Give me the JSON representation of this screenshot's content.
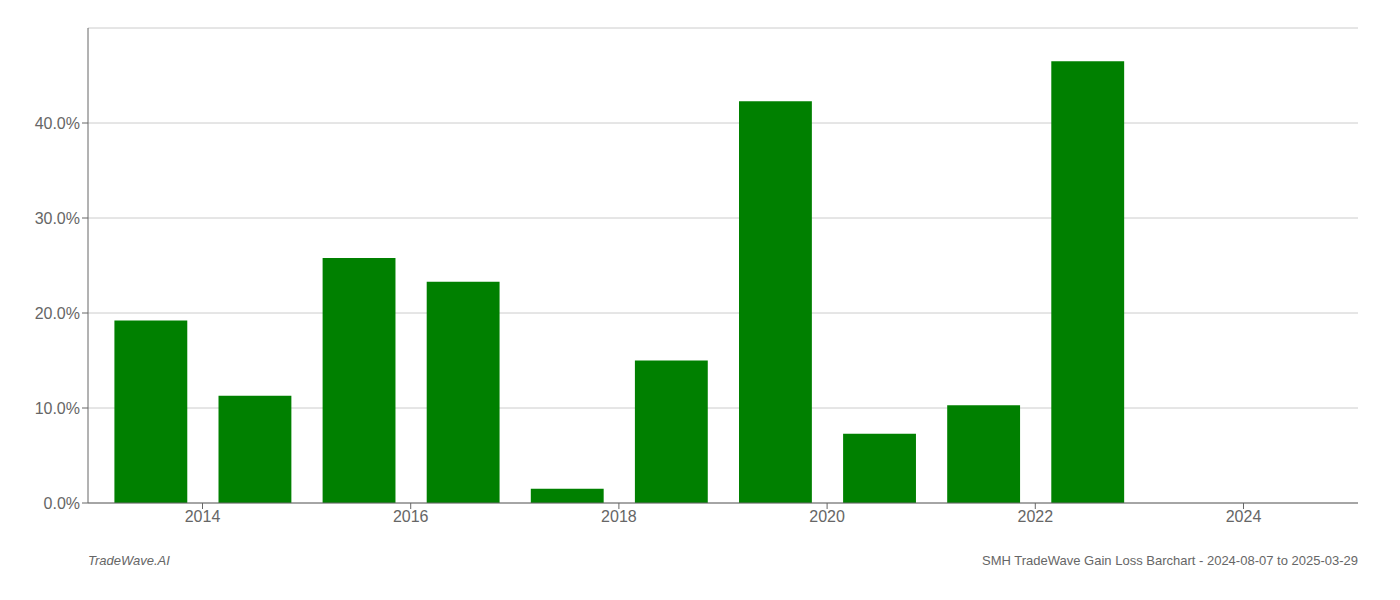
{
  "chart_data": {
    "type": "bar",
    "x": [
      2013,
      2014,
      2015,
      2016,
      2017,
      2018,
      2019,
      2020,
      2021,
      2022
    ],
    "values": [
      0.192,
      0.113,
      0.258,
      0.233,
      0.015,
      0.15,
      0.423,
      0.073,
      0.103,
      0.465
    ],
    "color": "#008000",
    "xlim": [
      2012.4,
      2024.6
    ],
    "xticks": [
      {
        "value": 2013.5,
        "label": "2014"
      },
      {
        "value": 2015.5,
        "label": "2016"
      },
      {
        "value": 2017.5,
        "label": "2018"
      },
      {
        "value": 2019.5,
        "label": "2020"
      },
      {
        "value": 2021.5,
        "label": "2022"
      },
      {
        "value": 2023.5,
        "label": "2024"
      }
    ],
    "ylim": [
      0,
      0.5
    ],
    "yticks": [
      {
        "value": 0.0,
        "label": "0.0%"
      },
      {
        "value": 0.1,
        "label": "10.0%"
      },
      {
        "value": 0.2,
        "label": "20.0%"
      },
      {
        "value": 0.3,
        "label": "30.0%"
      },
      {
        "value": 0.4,
        "label": "40.0%"
      }
    ],
    "grid": true,
    "annotations": [
      "TradeWave.AI",
      "SMH TradeWave Gain Loss Barchart - 2024-08-07 to 2025-03-29"
    ]
  }
}
